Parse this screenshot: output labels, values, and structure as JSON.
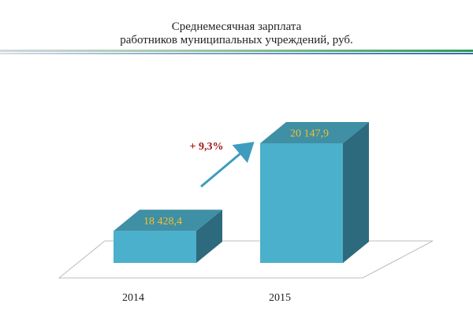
{
  "slide": {
    "title_line1": "Среднемесячная зарплата",
    "title_line2": "работников муниципальных учреждений, руб."
  },
  "chart_data": {
    "type": "bar",
    "title": "Среднемесячная зарплата работников муниципальных учреждений, руб.",
    "categories": [
      "2014",
      "2015"
    ],
    "values": [
      18428.4,
      20147.9
    ],
    "value_labels": [
      "18 428,4",
      "20 147,9"
    ],
    "annotation": "+ 9,3%",
    "xlabel": "",
    "ylabel": "",
    "grid": false,
    "legend": "none",
    "colors": {
      "bar_front": "#4bb0cc",
      "bar_top": "#3f8fa5",
      "bar_side": "#2d6a7d",
      "value_label": "#f2c12e",
      "annotation": "#a01818",
      "arrow": "#3e9cbf"
    }
  }
}
